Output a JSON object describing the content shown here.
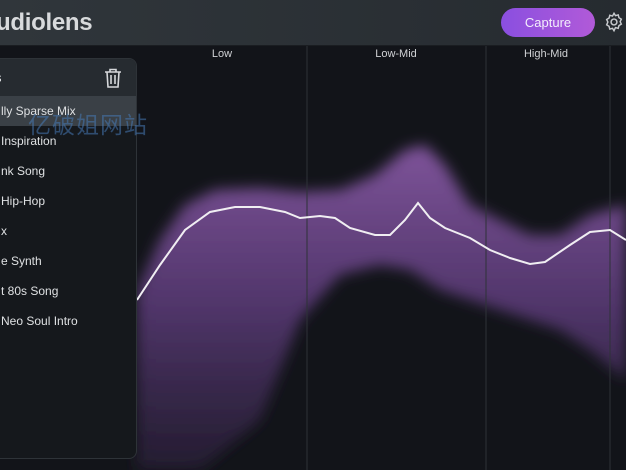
{
  "app": {
    "title": "Audiolens",
    "visible_title": "udiolens",
    "capture_label": "Capture",
    "accent": "#9b55dc"
  },
  "chart": {
    "bands": [
      "Low",
      "Low-Mid",
      "High-Mid"
    ]
  },
  "panel": {
    "title": "s",
    "items": [
      {
        "label": "lly Sparse Mix",
        "selected": true
      },
      {
        "label": "Inspiration"
      },
      {
        "label": "nk Song"
      },
      {
        "label": "Hip-Hop"
      },
      {
        "label": "x"
      },
      {
        "label": "e Synth"
      },
      {
        "label": "t 80s Song"
      },
      {
        "label": "Neo Soul Intro"
      }
    ]
  },
  "watermark": "亿破姐网站"
}
